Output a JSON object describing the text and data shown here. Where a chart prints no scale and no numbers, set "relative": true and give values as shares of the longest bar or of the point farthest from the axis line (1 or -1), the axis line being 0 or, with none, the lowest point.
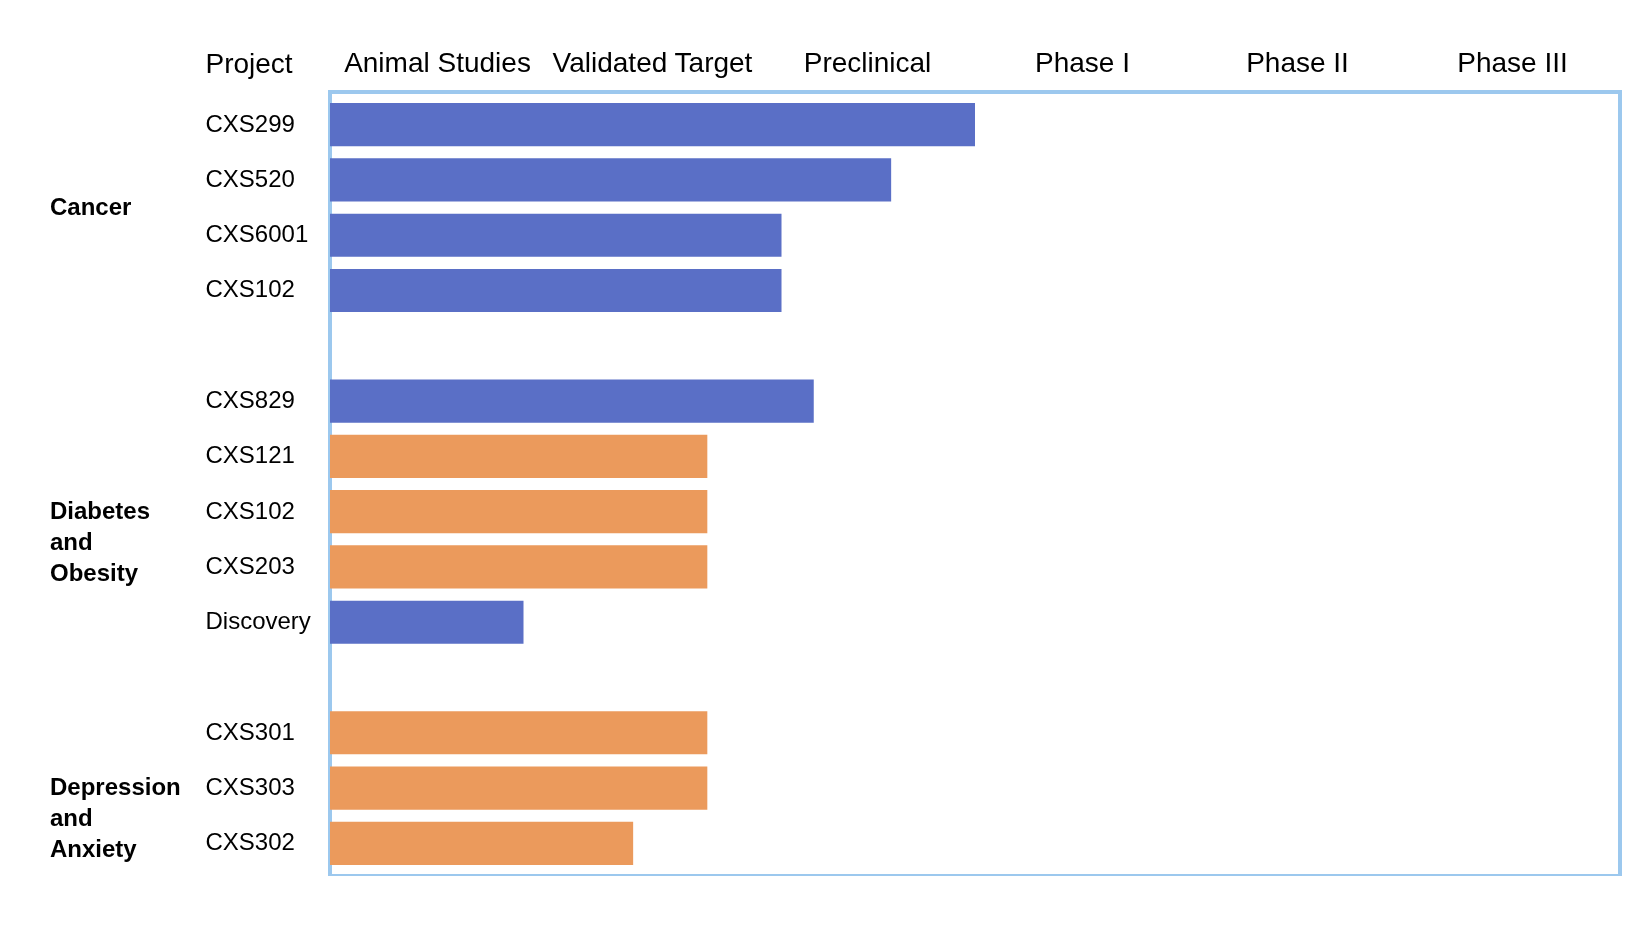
{
  "chart_data": {
    "type": "bar",
    "orientation": "horizontal",
    "relative": true,
    "ylabel": "Project",
    "annotations": [
      "Animal Studies",
      "Validated Target",
      "Preclinical",
      "Phase I",
      "Phase II",
      "Phase III",
      "Cancer",
      "Diabetes and Obesity",
      "Depression and Anxiety"
    ],
    "categories": [
      "CXS299",
      "CXS520",
      "CXS6001",
      "CXS102",
      null,
      "CXS829",
      "CXS121",
      "CXS102",
      "CXS203",
      "Discovery",
      null,
      "CXS301",
      "CXS303",
      "CXS302"
    ],
    "values": [
      1,
      0.87,
      0.7,
      0.7,
      null,
      0.75,
      0.585,
      0.585,
      0.585,
      0.3,
      null,
      0.585,
      0.585,
      0.47
    ],
    "colors": [
      "#5a6fc6",
      "#5a6fc6",
      "#5a6fc6",
      "#5a6fc6",
      null,
      "#5a6fc6",
      "#eb9a5c",
      "#eb9a5c",
      "#eb9a5c",
      "#5a6fc6",
      null,
      "#eb9a5c",
      "#eb9a5c",
      "#eb9a5c"
    ],
    "grid": false
  }
}
